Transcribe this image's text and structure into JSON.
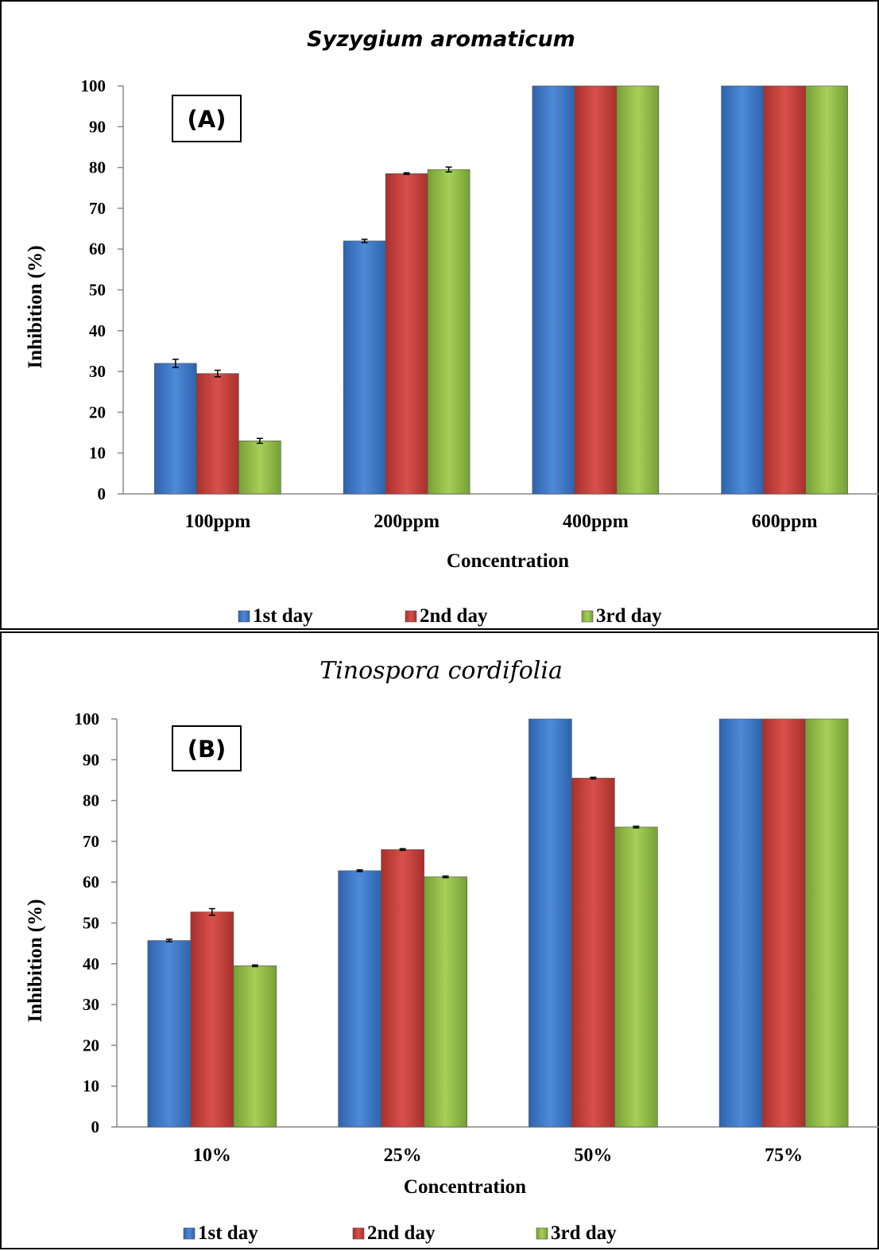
{
  "chart_data": [
    {
      "type": "bar",
      "title": "Syzygium aromaticum",
      "panel_label": "(A)",
      "xlabel": "Concentration",
      "ylabel": "Inhibition (%)",
      "ylim": [
        0,
        100
      ],
      "yticks": [
        0,
        10,
        20,
        30,
        40,
        50,
        60,
        70,
        80,
        90,
        100
      ],
      "categories": [
        "100ppm",
        "200ppm",
        "400ppm",
        "600ppm"
      ],
      "series": [
        {
          "name": "1st day",
          "values": [
            32,
            62,
            100,
            100
          ],
          "errors": [
            1,
            0.4,
            0,
            0
          ],
          "color": "#3d78c9"
        },
        {
          "name": "2nd day",
          "values": [
            29.5,
            78.5,
            100,
            100
          ],
          "errors": [
            0.8,
            0.2,
            0,
            0
          ],
          "color": "#c9403c"
        },
        {
          "name": "3rd day",
          "values": [
            13,
            79.5,
            100,
            100
          ],
          "errors": [
            0.6,
            0.6,
            0,
            0
          ],
          "color": "#93bd47"
        }
      ],
      "grid": false,
      "legend_position": "bottom"
    },
    {
      "type": "bar",
      "title": "Tinospora cordifolia",
      "panel_label": "(B)",
      "xlabel": "Concentration",
      "ylabel": "Inhibition (%)",
      "ylim": [
        0,
        100
      ],
      "yticks": [
        0,
        10,
        20,
        30,
        40,
        50,
        60,
        70,
        80,
        90,
        100
      ],
      "categories": [
        "10%",
        "25%",
        "50%",
        "75%"
      ],
      "series": [
        {
          "name": "1st day",
          "values": [
            45.7,
            62.8,
            100,
            100
          ],
          "errors": [
            0.3,
            0.2,
            0,
            0
          ],
          "color": "#3d78c9"
        },
        {
          "name": "2nd day",
          "values": [
            52.7,
            68,
            85.5,
            100
          ],
          "errors": [
            0.8,
            0.2,
            0.2,
            0
          ],
          "color": "#c9403c"
        },
        {
          "name": "3rd day",
          "values": [
            39.5,
            61.3,
            73.5,
            100
          ],
          "errors": [
            0.2,
            0.2,
            0.2,
            0
          ],
          "color": "#93bd47"
        }
      ],
      "grid": false,
      "legend_position": "bottom"
    }
  ]
}
